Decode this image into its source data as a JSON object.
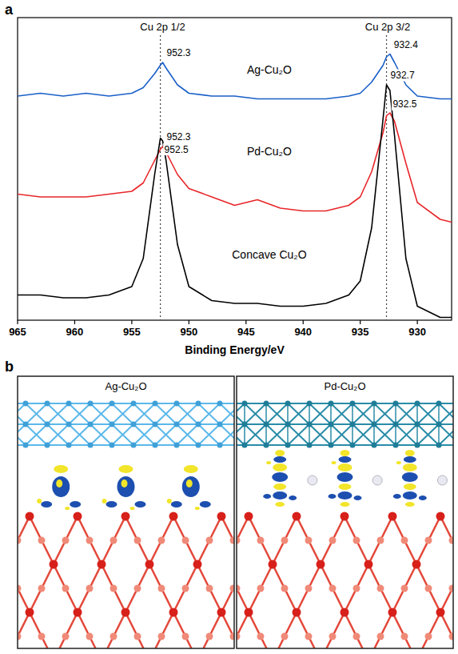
{
  "chart_data": {
    "type": "line",
    "panel_label": "a",
    "x_label": "Binding Energy/eV",
    "annotations": [
      {
        "text": "Cu 2p 1/2",
        "x": 952.3
      },
      {
        "text": "Cu 2p 3/2",
        "x": 932.6
      }
    ],
    "x": [
      965,
      963,
      961,
      959,
      957,
      955,
      954,
      953,
      952.5,
      952.3,
      952,
      951,
      950,
      948,
      946,
      944,
      942,
      940,
      938,
      936,
      935,
      934,
      933,
      932.7,
      932.4,
      932,
      931,
      930,
      928,
      927
    ],
    "series": [
      {
        "name": "Ag-Cu₂O",
        "color": "#1a5fc8",
        "peaks": [
          952.3,
          932.4
        ],
        "values": [
          80,
          81,
          80,
          81,
          80,
          81,
          83,
          88,
          91,
          92,
          90,
          84,
          81,
          80,
          80,
          79,
          79,
          79,
          79,
          80,
          81,
          85,
          91,
          94,
          95,
          92,
          84,
          80,
          79,
          79
        ]
      },
      {
        "name": "Pd-Cu₂O",
        "color": "#e8262a",
        "peaks": [
          952.3,
          932.5
        ],
        "values": [
          45,
          44,
          44,
          44,
          45,
          46,
          49,
          57,
          61,
          62,
          60,
          52,
          47,
          44,
          41,
          43,
          40,
          39,
          39,
          41,
          44,
          53,
          67,
          73,
          74,
          71,
          56,
          42,
          36,
          35
        ]
      },
      {
        "name": "Concave Cu₂O",
        "color": "#000000",
        "peaks": [
          952.5,
          932.7
        ],
        "values": [
          9,
          9,
          8,
          8,
          9,
          12,
          22,
          52,
          65,
          64,
          57,
          27,
          12,
          7,
          6,
          6,
          5,
          5,
          6,
          9,
          14,
          33,
          72,
          84,
          82,
          66,
          22,
          5,
          1,
          1
        ]
      }
    ],
    "xlim": [
      965,
      927
    ],
    "ylim": [
      0,
      100
    ],
    "xticks": [
      965,
      960,
      955,
      950,
      945,
      940,
      935,
      930
    ],
    "tick_labels": "x",
    "grid": false
  },
  "diagram": {
    "panel_label": "b",
    "panels": [
      {
        "title": "Ag-Cu₂O"
      },
      {
        "title": "Pd-Cu₂O"
      }
    ]
  }
}
